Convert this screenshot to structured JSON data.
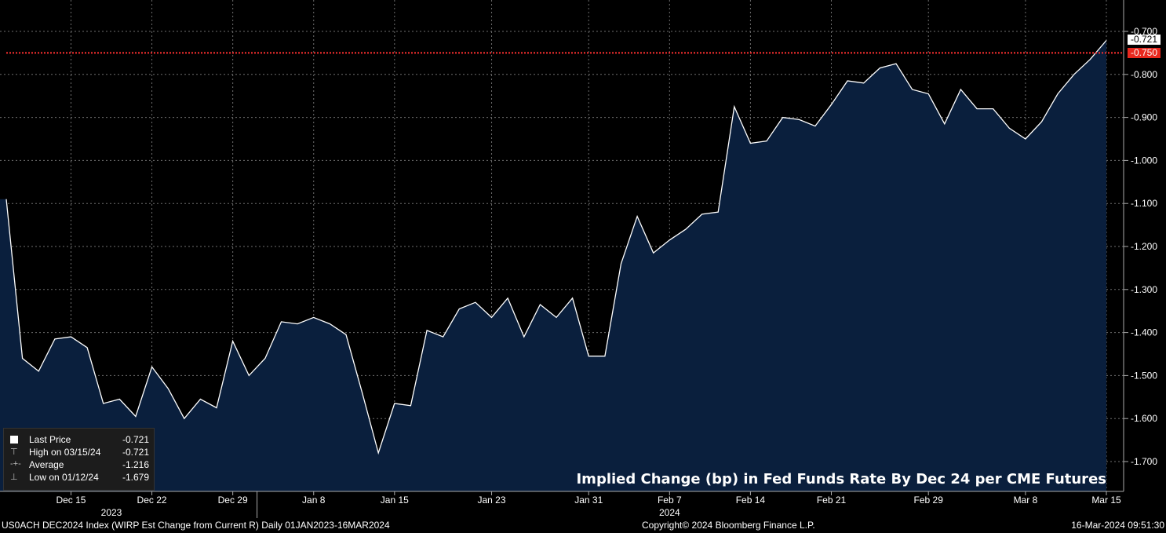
{
  "chart_data": {
    "type": "area",
    "title": "Implied Change (bp) in Fed Funds Rate By Dec 24 per CME Futures",
    "xlabel": "",
    "ylabel": "",
    "ylim": [
      -1.78,
      -0.65
    ],
    "y_ticks": [
      "-0.700",
      "-0.800",
      "-0.900",
      "-1.000",
      "-1.100",
      "-1.200",
      "-1.300",
      "-1.400",
      "-1.500",
      "-1.600",
      "-1.700"
    ],
    "y_tick_values": [
      -0.7,
      -0.8,
      -0.9,
      -1.0,
      -1.1,
      -1.2,
      -1.3,
      -1.4,
      -1.5,
      -1.6,
      -1.7
    ],
    "x_ticks": [
      {
        "label": "Dec 15",
        "index": 4
      },
      {
        "label": "Dec 22",
        "index": 9
      },
      {
        "label": "Dec 29",
        "index": 14
      },
      {
        "label": "Jan 8",
        "index": 19
      },
      {
        "label": "Jan 15",
        "index": 24
      },
      {
        "label": "Jan 23",
        "index": 30
      },
      {
        "label": "Jan 31",
        "index": 36
      },
      {
        "label": "Feb 7",
        "index": 41
      },
      {
        "label": "Feb 14",
        "index": 46
      },
      {
        "label": "Feb 21",
        "index": 51
      },
      {
        "label": "Feb 29",
        "index": 57
      },
      {
        "label": "Mar 8",
        "index": 63
      },
      {
        "label": "Mar 15",
        "index": 68
      }
    ],
    "year_labels": [
      {
        "label": "2023",
        "index": 6.5
      },
      {
        "label": "2024",
        "index": 41
      }
    ],
    "grid": true,
    "reference_line": {
      "value": -0.75,
      "label": "-0.750",
      "color": "#ff3030"
    },
    "last_value_label": "-0.721",
    "line_color": "#ffffff",
    "fill_color": "#0a1f3d",
    "series": [
      {
        "name": "Last Price",
        "values": [
          -1.09,
          -1.46,
          -1.49,
          -1.415,
          -1.41,
          -1.435,
          -1.565,
          -1.555,
          -1.595,
          -1.48,
          -1.53,
          -1.6,
          -1.555,
          -1.575,
          -1.42,
          -1.5,
          -1.46,
          -1.375,
          -1.38,
          -1.365,
          -1.38,
          -1.405,
          -1.54,
          -1.68,
          -1.565,
          -1.57,
          -1.395,
          -1.41,
          -1.345,
          -1.33,
          -1.365,
          -1.32,
          -1.41,
          -1.335,
          -1.365,
          -1.32,
          -1.455,
          -1.455,
          -1.24,
          -1.13,
          -1.215,
          -1.185,
          -1.16,
          -1.125,
          -1.12,
          -0.875,
          -0.96,
          -0.955,
          -0.9,
          -0.905,
          -0.92,
          -0.87,
          -0.815,
          -0.82,
          -0.785,
          -0.775,
          -0.835,
          -0.845,
          -0.915,
          -0.835,
          -0.88,
          -0.88,
          -0.925,
          -0.95,
          -0.91,
          -0.845,
          -0.8,
          -0.765,
          -0.721
        ]
      }
    ]
  },
  "legend": {
    "items": [
      {
        "symbol": "■",
        "label": "Last Price",
        "value": "-0.721"
      },
      {
        "symbol": "⊤",
        "label": "High on 03/15/24",
        "value": "-0.721"
      },
      {
        "symbol": "-+-",
        "label": "Average",
        "value": "-1.216"
      },
      {
        "symbol": "⊥",
        "label": "Low on 01/12/24",
        "value": "-1.679"
      }
    ]
  },
  "footer": {
    "left": "US0ACH DEC2024 Index (WIRP Est Change from Current R)  Daily 01JAN2023-16MAR2024",
    "center": "Copyright© 2024 Bloomberg Finance L.P.",
    "right": "16-Mar-2024 09:51:30"
  },
  "colors": {
    "background": "#000000",
    "grid": "#6e6e6e",
    "reference": "#ff3030",
    "area": "#0a1f3d"
  }
}
